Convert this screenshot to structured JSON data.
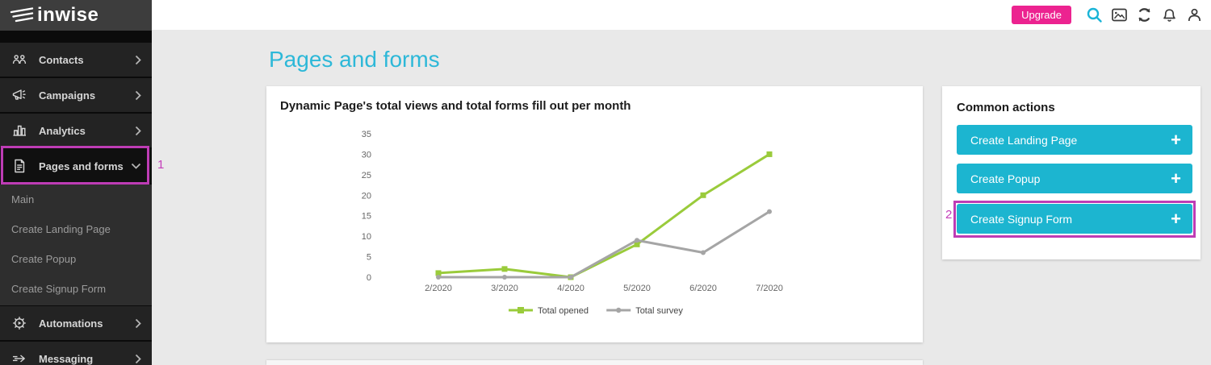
{
  "brand": {
    "logo_text": "inwise"
  },
  "topbar": {
    "upgrade_label": "Upgrade",
    "icons": [
      "search-icon",
      "image-icon",
      "sync-icon",
      "bell-icon",
      "user-icon"
    ]
  },
  "sidebar": {
    "items": [
      {
        "label": "Contacts",
        "icon": "contacts-icon",
        "chevron": "right"
      },
      {
        "label": "Campaigns",
        "icon": "megaphone-icon",
        "chevron": "right"
      },
      {
        "label": "Analytics",
        "icon": "bar-chart-icon",
        "chevron": "right"
      },
      {
        "label": "Pages and forms",
        "icon": "document-icon",
        "chevron": "down",
        "expanded": true,
        "annotation": "1"
      },
      {
        "label": "Automations",
        "icon": "gear-play-icon",
        "chevron": "right"
      },
      {
        "label": "Messaging",
        "icon": "arrow-icon",
        "chevron": "right"
      }
    ],
    "submenu": [
      "Main",
      "Create Landing Page",
      "Create Popup",
      "Create Signup Form"
    ]
  },
  "page": {
    "title": "Pages and forms"
  },
  "chart_card": {
    "title": "Dynamic Page's total views and total forms fill out per month"
  },
  "chart_data": {
    "type": "line",
    "title": "Dynamic Page's total views and total forms fill out per month",
    "categories": [
      "2/2020",
      "3/2020",
      "4/2020",
      "5/2020",
      "6/2020",
      "7/2020"
    ],
    "series": [
      {
        "name": "Total opened",
        "color": "#9acb3b",
        "marker": "square",
        "values": [
          1,
          2,
          0,
          8,
          20,
          30
        ]
      },
      {
        "name": "Total survey",
        "color": "#a5a5a5",
        "marker": "circle",
        "values": [
          0,
          0,
          0,
          9,
          6,
          16
        ]
      }
    ],
    "xlabel": "",
    "ylabel": "",
    "ylim": [
      0,
      35
    ],
    "yticks": [
      0,
      5,
      10,
      15,
      20,
      25,
      30,
      35
    ],
    "grid": false,
    "legend_position": "bottom"
  },
  "common_actions": {
    "title": "Common actions",
    "plus": "+",
    "buttons": [
      {
        "label": "Create Landing Page"
      },
      {
        "label": "Create Popup"
      },
      {
        "label": "Create Signup Form",
        "annotation": "2"
      }
    ]
  },
  "annotations": {
    "step_1": "1",
    "step_2": "2"
  },
  "colors": {
    "accent_cyan": "#1cb5d0",
    "title_cyan": "#2db8d8",
    "brand_magenta": "#ec2390",
    "highlight_magenta": "#be3cb5",
    "series_green": "#9acb3b",
    "series_gray": "#a5a5a5"
  }
}
